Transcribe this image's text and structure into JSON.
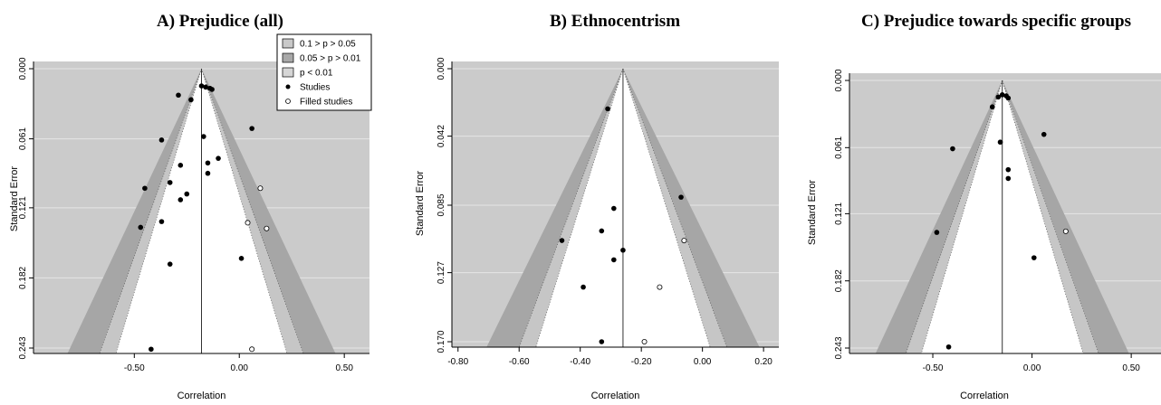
{
  "legend": {
    "items": [
      {
        "label": "0.1 > p > 0.05",
        "color": "#c9c9c9",
        "kind": "box"
      },
      {
        "label": "0.05 > p > 0.01",
        "color": "#a8a8a8",
        "kind": "box"
      },
      {
        "label": "p < 0.01",
        "color": "#d6d6d6",
        "kind": "box"
      },
      {
        "label": "Studies",
        "kind": "filled"
      },
      {
        "label": "Filled studies",
        "kind": "open"
      }
    ]
  },
  "colors": {
    "background": "#cbcbcb",
    "band_05": "#a6a6a6",
    "band_10": "#c6c6c6",
    "funnel": "#ffffff",
    "grid": "#e6e6e6"
  },
  "chart_data": [
    {
      "type": "scatter",
      "title": "A) Prejudice (all)",
      "xlabel": "Correlation",
      "ylabel": "Standard Error",
      "x_ticks": [
        "-0.50",
        "0.00",
        "0.50"
      ],
      "x_tick_values": [
        -0.5,
        0.0,
        0.5
      ],
      "y_ticks": [
        "0.000",
        "0.061",
        "0.121",
        "0.182",
        "0.243"
      ],
      "y_tick_values": [
        0.0,
        0.061,
        0.121,
        0.182,
        0.243
      ],
      "xlim": [
        -0.98,
        0.62
      ],
      "ylim": [
        0.243,
        0.0
      ],
      "center": -0.18,
      "show_legend": true,
      "studies": [
        {
          "x": -0.18,
          "y": 0.015
        },
        {
          "x": -0.16,
          "y": 0.016
        },
        {
          "x": -0.14,
          "y": 0.017
        },
        {
          "x": -0.13,
          "y": 0.018
        },
        {
          "x": -0.29,
          "y": 0.023
        },
        {
          "x": -0.23,
          "y": 0.027
        },
        {
          "x": 0.06,
          "y": 0.052
        },
        {
          "x": -0.17,
          "y": 0.059
        },
        {
          "x": -0.37,
          "y": 0.062
        },
        {
          "x": -0.1,
          "y": 0.078
        },
        {
          "x": -0.15,
          "y": 0.082
        },
        {
          "x": -0.28,
          "y": 0.084
        },
        {
          "x": -0.15,
          "y": 0.091
        },
        {
          "x": -0.33,
          "y": 0.099
        },
        {
          "x": -0.45,
          "y": 0.104
        },
        {
          "x": -0.25,
          "y": 0.109
        },
        {
          "x": -0.28,
          "y": 0.114
        },
        {
          "x": -0.37,
          "y": 0.133
        },
        {
          "x": -0.47,
          "y": 0.138
        },
        {
          "x": 0.01,
          "y": 0.165
        },
        {
          "x": -0.33,
          "y": 0.17
        },
        {
          "x": -0.42,
          "y": 0.244
        }
      ],
      "filled_studies": [
        {
          "x": 0.1,
          "y": 0.104
        },
        {
          "x": 0.04,
          "y": 0.134
        },
        {
          "x": 0.13,
          "y": 0.139
        },
        {
          "x": 0.06,
          "y": 0.244
        }
      ]
    },
    {
      "type": "scatter",
      "title": "B) Ethnocentrism",
      "xlabel": "Correlation",
      "ylabel": "Standard Error",
      "x_ticks": [
        "-0.80",
        "-0.60",
        "-0.40",
        "-0.20",
        "0.00",
        "0.20"
      ],
      "x_tick_values": [
        -0.8,
        -0.6,
        -0.4,
        -0.2,
        0.0,
        0.2
      ],
      "y_ticks": [
        "0.000",
        "0.042",
        "0.085",
        "0.127",
        "0.170"
      ],
      "y_tick_values": [
        0.0,
        0.042,
        0.085,
        0.127,
        0.17
      ],
      "xlim": [
        -0.82,
        0.25
      ],
      "ylim": [
        0.17,
        0.0
      ],
      "center": -0.26,
      "show_legend": false,
      "studies": [
        {
          "x": -0.31,
          "y": 0.025
        },
        {
          "x": -0.07,
          "y": 0.08
        },
        {
          "x": -0.29,
          "y": 0.087
        },
        {
          "x": -0.33,
          "y": 0.101
        },
        {
          "x": -0.46,
          "y": 0.107
        },
        {
          "x": -0.26,
          "y": 0.113
        },
        {
          "x": -0.29,
          "y": 0.119
        },
        {
          "x": -0.39,
          "y": 0.136
        },
        {
          "x": -0.33,
          "y": 0.17
        }
      ],
      "filled_studies": [
        {
          "x": -0.06,
          "y": 0.107
        },
        {
          "x": -0.14,
          "y": 0.136
        },
        {
          "x": -0.19,
          "y": 0.17
        }
      ]
    },
    {
      "type": "scatter",
      "title": "C) Prejudice towards specific groups",
      "xlabel": "Correlation",
      "ylabel": "Standard Error",
      "x_ticks": [
        "-0.50",
        "0.00",
        "0.50"
      ],
      "x_tick_values": [
        -0.5,
        0.0,
        0.5
      ],
      "y_ticks": [
        "0.000",
        "0.061",
        "0.121",
        "0.182",
        "0.243"
      ],
      "y_tick_values": [
        0.0,
        0.061,
        0.121,
        0.182,
        0.243
      ],
      "xlim": [
        -0.92,
        0.65
      ],
      "ylim": [
        0.243,
        0.0
      ],
      "center": -0.15,
      "show_legend": false,
      "studies": [
        {
          "x": -0.15,
          "y": 0.013
        },
        {
          "x": -0.13,
          "y": 0.014
        },
        {
          "x": -0.17,
          "y": 0.015
        },
        {
          "x": -0.12,
          "y": 0.016
        },
        {
          "x": -0.2,
          "y": 0.024
        },
        {
          "x": 0.06,
          "y": 0.049
        },
        {
          "x": -0.16,
          "y": 0.056
        },
        {
          "x": -0.4,
          "y": 0.062
        },
        {
          "x": -0.12,
          "y": 0.081
        },
        {
          "x": -0.12,
          "y": 0.089
        },
        {
          "x": -0.48,
          "y": 0.138
        },
        {
          "x": 0.01,
          "y": 0.161
        },
        {
          "x": -0.42,
          "y": 0.242
        }
      ],
      "filled_studies": [
        {
          "x": 0.17,
          "y": 0.137
        }
      ]
    }
  ]
}
